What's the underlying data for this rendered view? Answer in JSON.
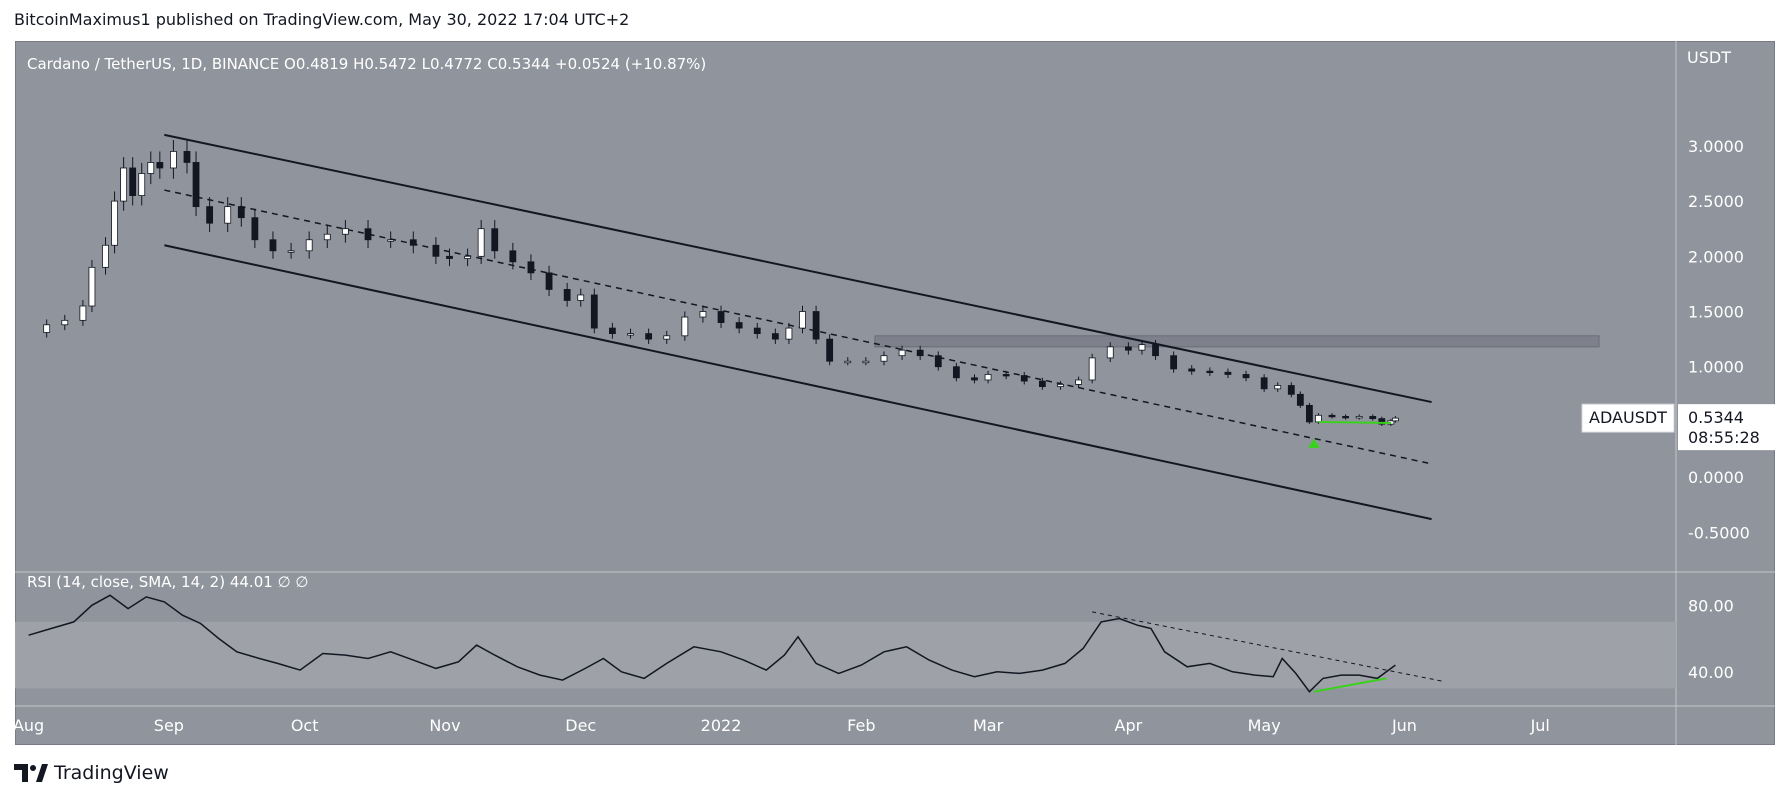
{
  "publish_line": "BitcoinMaximus1 published on TradingView.com, May 30, 2022 17:04 UTC+2",
  "brand": "TradingView",
  "colors": {
    "panel": "#90949c",
    "rsi_band": "#9ea1a8",
    "candle_up": "#ffffff",
    "candle_down": "#131722",
    "green": "#39d21b",
    "price_label_bg": "#ffffff"
  },
  "chart_data": [
    {
      "type": "candlestick",
      "title": "Cardano / TetherUS, 1D, BINANCE",
      "ohlc_header": {
        "o_label": "O",
        "o": "0.4819",
        "h_label": "H",
        "h": "0.5472",
        "l_label": "L",
        "l": "0.4772",
        "c_label": "C",
        "c": "0.5344",
        "change": "+0.0524 (+10.87%)"
      },
      "currency": "USDT",
      "symbol": "ADAUSDT",
      "last_price": "0.5344",
      "countdown": "08:55:28",
      "y_ticks": [
        "3.0000",
        "2.5000",
        "2.0000",
        "1.5000",
        "1.0000",
        "0.0000",
        "-0.5000"
      ],
      "y_tick_values": [
        3.0,
        2.5,
        2.0,
        1.5,
        1.0,
        0.0,
        -0.5
      ],
      "ylim": [
        -0.85,
        3.95
      ],
      "x_ticks": [
        "Aug",
        "Sep",
        "Oct",
        "Nov",
        "Dec",
        "2022",
        "Feb",
        "Mar",
        "Apr",
        "May",
        "Jun",
        "Jul"
      ],
      "x_tick_dates": [
        "2021-08-01",
        "2021-09-01",
        "2021-10-01",
        "2021-11-01",
        "2021-12-01",
        "2022-01-01",
        "2022-02-01",
        "2022-03-01",
        "2022-04-01",
        "2022-05-01",
        "2022-06-01",
        "2022-07-01"
      ],
      "series": [
        {
          "values_date_close": [
            [
              "2021-08-01",
              1.31
            ],
            [
              "2021-08-05",
              1.38
            ],
            [
              "2021-08-09",
              1.42
            ],
            [
              "2021-08-13",
              1.55
            ],
            [
              "2021-08-15",
              1.9
            ],
            [
              "2021-08-18",
              2.1
            ],
            [
              "2021-08-20",
              2.5
            ],
            [
              "2021-08-22",
              2.8
            ],
            [
              "2021-08-24",
              2.55
            ],
            [
              "2021-08-26",
              2.75
            ],
            [
              "2021-08-28",
              2.85
            ],
            [
              "2021-08-30",
              2.8
            ],
            [
              "2021-09-02",
              2.95
            ],
            [
              "2021-09-05",
              2.85
            ],
            [
              "2021-09-07",
              2.45
            ],
            [
              "2021-09-10",
              2.3
            ],
            [
              "2021-09-14",
              2.45
            ],
            [
              "2021-09-17",
              2.35
            ],
            [
              "2021-09-20",
              2.15
            ],
            [
              "2021-09-24",
              2.05
            ],
            [
              "2021-09-28",
              2.05
            ],
            [
              "2021-10-02",
              2.15
            ],
            [
              "2021-10-06",
              2.2
            ],
            [
              "2021-10-10",
              2.25
            ],
            [
              "2021-10-15",
              2.15
            ],
            [
              "2021-10-20",
              2.15
            ],
            [
              "2021-10-25",
              2.1
            ],
            [
              "2021-10-30",
              2.0
            ],
            [
              "2021-11-02",
              1.98
            ],
            [
              "2021-11-06",
              2.0
            ],
            [
              "2021-11-09",
              2.25
            ],
            [
              "2021-11-12",
              2.05
            ],
            [
              "2021-11-16",
              1.95
            ],
            [
              "2021-11-20",
              1.85
            ],
            [
              "2021-11-24",
              1.7
            ],
            [
              "2021-11-28",
              1.6
            ],
            [
              "2021-12-01",
              1.65
            ],
            [
              "2021-12-04",
              1.35
            ],
            [
              "2021-12-08",
              1.3
            ],
            [
              "2021-12-12",
              1.3
            ],
            [
              "2021-12-16",
              1.25
            ],
            [
              "2021-12-20",
              1.28
            ],
            [
              "2021-12-24",
              1.45
            ],
            [
              "2021-12-28",
              1.5
            ],
            [
              "2022-01-01",
              1.4
            ],
            [
              "2022-01-05",
              1.35
            ],
            [
              "2022-01-09",
              1.3
            ],
            [
              "2022-01-13",
              1.25
            ],
            [
              "2022-01-16",
              1.35
            ],
            [
              "2022-01-19",
              1.5
            ],
            [
              "2022-01-22",
              1.25
            ],
            [
              "2022-01-25",
              1.05
            ],
            [
              "2022-01-29",
              1.05
            ],
            [
              "2022-02-02",
              1.05
            ],
            [
              "2022-02-06",
              1.1
            ],
            [
              "2022-02-10",
              1.15
            ],
            [
              "2022-02-14",
              1.1
            ],
            [
              "2022-02-18",
              1.0
            ],
            [
              "2022-02-22",
              0.9
            ],
            [
              "2022-02-26",
              0.88
            ],
            [
              "2022-03-01",
              0.93
            ],
            [
              "2022-03-05",
              0.92
            ],
            [
              "2022-03-09",
              0.87
            ],
            [
              "2022-03-13",
              0.82
            ],
            [
              "2022-03-17",
              0.84
            ],
            [
              "2022-03-21",
              0.88
            ],
            [
              "2022-03-24",
              1.08
            ],
            [
              "2022-03-28",
              1.18
            ],
            [
              "2022-04-01",
              1.15
            ],
            [
              "2022-04-04",
              1.2
            ],
            [
              "2022-04-07",
              1.1
            ],
            [
              "2022-04-11",
              0.98
            ],
            [
              "2022-04-15",
              0.96
            ],
            [
              "2022-04-19",
              0.95
            ],
            [
              "2022-04-23",
              0.93
            ],
            [
              "2022-04-27",
              0.9
            ],
            [
              "2022-05-01",
              0.8
            ],
            [
              "2022-05-04",
              0.83
            ],
            [
              "2022-05-07",
              0.75
            ],
            [
              "2022-05-09",
              0.65
            ],
            [
              "2022-05-11",
              0.5
            ],
            [
              "2022-05-13",
              0.56
            ],
            [
              "2022-05-16",
              0.55
            ],
            [
              "2022-05-19",
              0.54
            ],
            [
              "2022-05-22",
              0.55
            ],
            [
              "2022-05-25",
              0.53
            ],
            [
              "2022-05-27",
              0.48
            ],
            [
              "2022-05-29",
              0.51
            ],
            [
              "2022-05-30",
              0.5344
            ]
          ]
        }
      ],
      "annotations": {
        "upper_channel": [
          [
            "2021-08-31",
            3.1
          ],
          [
            "2022-06-07",
            0.68
          ]
        ],
        "mid_channel": [
          [
            "2021-08-31",
            2.6
          ],
          [
            "2022-06-07",
            0.12
          ]
        ],
        "lower_channel": [
          [
            "2021-08-31",
            2.1
          ],
          [
            "2022-06-07",
            -0.38
          ]
        ],
        "resistance_zone": {
          "from": "2022-02-04",
          "to": "2022-07-14",
          "low": 1.18,
          "high": 1.28
        },
        "green_support": [
          [
            "2022-05-13",
            0.5
          ],
          [
            "2022-05-29",
            0.49
          ]
        ],
        "arrow_date": "2022-05-12",
        "arrow_price": 0.32
      },
      "grid": false
    },
    {
      "type": "line",
      "title": "RSI (14, close, SMA, 14, 2)",
      "value": "44.01",
      "extras": [
        "∅",
        "∅"
      ],
      "y_ticks": [
        "80.00",
        "40.00"
      ],
      "y_tick_values": [
        80,
        40
      ],
      "ylim": [
        20,
        100
      ],
      "band": [
        30,
        70
      ],
      "series": [
        {
          "values_date_rsi": [
            [
              "2021-08-01",
              62
            ],
            [
              "2021-08-06",
              66
            ],
            [
              "2021-08-11",
              70
            ],
            [
              "2021-08-15",
              80
            ],
            [
              "2021-08-19",
              86
            ],
            [
              "2021-08-23",
              78
            ],
            [
              "2021-08-27",
              85
            ],
            [
              "2021-08-31",
              82
            ],
            [
              "2021-09-04",
              74
            ],
            [
              "2021-09-08",
              69
            ],
            [
              "2021-09-12",
              60
            ],
            [
              "2021-09-16",
              52
            ],
            [
              "2021-09-21",
              48
            ],
            [
              "2021-09-25",
              45
            ],
            [
              "2021-09-30",
              41
            ],
            [
              "2021-10-05",
              51
            ],
            [
              "2021-10-10",
              50
            ],
            [
              "2021-10-15",
              48
            ],
            [
              "2021-10-20",
              52
            ],
            [
              "2021-10-25",
              47
            ],
            [
              "2021-10-30",
              42
            ],
            [
              "2021-11-04",
              46
            ],
            [
              "2021-11-08",
              56
            ],
            [
              "2021-11-12",
              50
            ],
            [
              "2021-11-17",
              43
            ],
            [
              "2021-11-22",
              38
            ],
            [
              "2021-11-27",
              35
            ],
            [
              "2021-12-02",
              42
            ],
            [
              "2021-12-06",
              48
            ],
            [
              "2021-12-10",
              40
            ],
            [
              "2021-12-15",
              36
            ],
            [
              "2021-12-20",
              45
            ],
            [
              "2021-12-26",
              55
            ],
            [
              "2022-01-01",
              52
            ],
            [
              "2022-01-06",
              47
            ],
            [
              "2022-01-11",
              41
            ],
            [
              "2022-01-15",
              50
            ],
            [
              "2022-01-18",
              61
            ],
            [
              "2022-01-22",
              45
            ],
            [
              "2022-01-27",
              39
            ],
            [
              "2022-02-01",
              44
            ],
            [
              "2022-02-06",
              52
            ],
            [
              "2022-02-11",
              55
            ],
            [
              "2022-02-16",
              47
            ],
            [
              "2022-02-21",
              41
            ],
            [
              "2022-02-26",
              37
            ],
            [
              "2022-03-03",
              40
            ],
            [
              "2022-03-08",
              39
            ],
            [
              "2022-03-13",
              41
            ],
            [
              "2022-03-18",
              45
            ],
            [
              "2022-03-22",
              54
            ],
            [
              "2022-03-26",
              70
            ],
            [
              "2022-03-30",
              72
            ],
            [
              "2022-04-03",
              68
            ],
            [
              "2022-04-06",
              66
            ],
            [
              "2022-04-09",
              52
            ],
            [
              "2022-04-14",
              43
            ],
            [
              "2022-04-19",
              45
            ],
            [
              "2022-04-24",
              40
            ],
            [
              "2022-04-29",
              38
            ],
            [
              "2022-05-03",
              37
            ],
            [
              "2022-05-05",
              48
            ],
            [
              "2022-05-08",
              39
            ],
            [
              "2022-05-11",
              28
            ],
            [
              "2022-05-14",
              36
            ],
            [
              "2022-05-18",
              38
            ],
            [
              "2022-05-22",
              38
            ],
            [
              "2022-05-26",
              36
            ],
            [
              "2022-05-30",
              44
            ]
          ]
        }
      ],
      "annotations": {
        "dashed_trend": [
          [
            "2022-03-24",
            76
          ],
          [
            "2022-06-10",
            34
          ]
        ],
        "green_divergence": [
          [
            "2022-05-12",
            28
          ],
          [
            "2022-05-28",
            36
          ]
        ]
      }
    }
  ]
}
